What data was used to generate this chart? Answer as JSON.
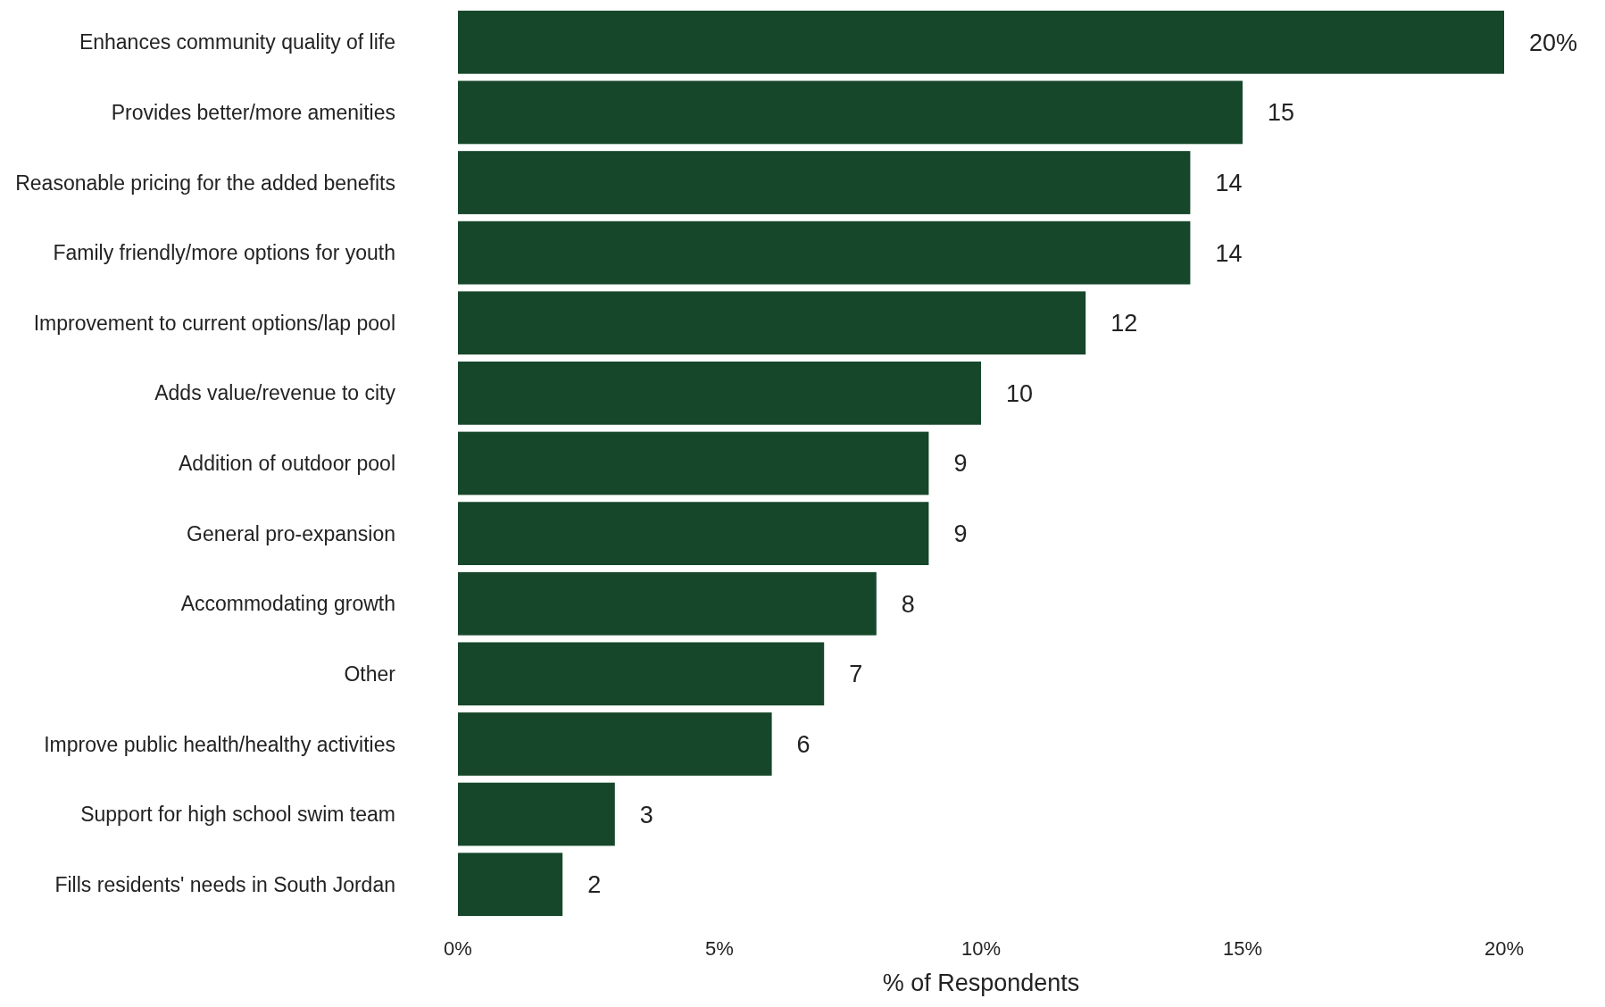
{
  "chart_data": {
    "type": "bar",
    "orientation": "horizontal",
    "xlabel": "% of Respondents",
    "categories": [
      "Enhances community quality of life",
      "Provides better/more amenities",
      "Reasonable pricing for the added benefits",
      "Family friendly/more options for youth",
      "Improvement to current options/lap pool",
      "Adds value/revenue to city",
      "Addition of outdoor pool",
      "General pro-expansion",
      "Accommodating growth",
      "Other",
      "Improve public health/healthy activities",
      "Support for high school swim team",
      "Fills residents' needs in South Jordan"
    ],
    "values": [
      20,
      15,
      14,
      14,
      12,
      10,
      9,
      9,
      8,
      7,
      6,
      3,
      2
    ],
    "value_labels": [
      "20%",
      "15",
      "14",
      "14",
      "12",
      "10",
      "9",
      "9",
      "8",
      "7",
      "6",
      "3",
      "2"
    ],
    "color": "#16472a",
    "xlim": [
      0,
      20
    ],
    "xticks": [
      {
        "value": 0,
        "label": "0%"
      },
      {
        "value": 5,
        "label": "5%"
      },
      {
        "value": 10,
        "label": "10%"
      },
      {
        "value": 15,
        "label": "15%"
      },
      {
        "value": 20,
        "label": "20%"
      }
    ],
    "grid": false
  }
}
